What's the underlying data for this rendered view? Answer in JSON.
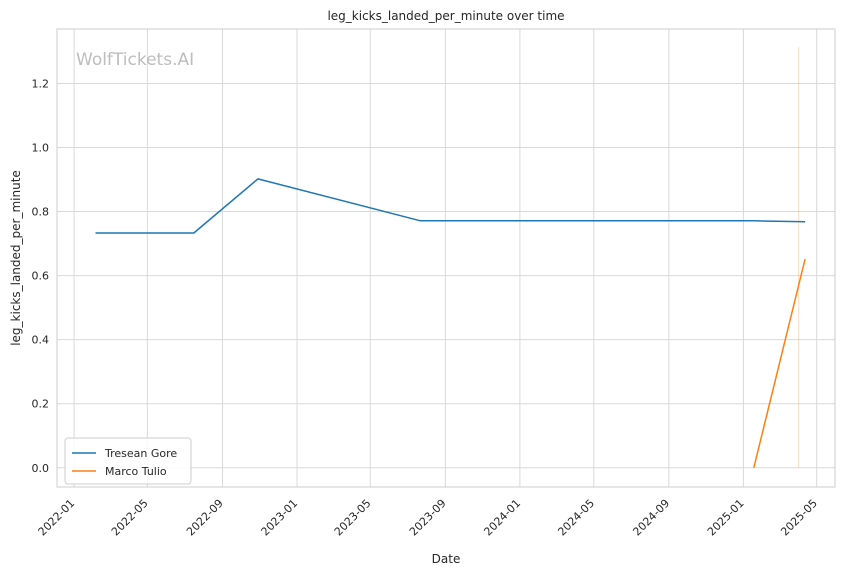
{
  "chart_data": {
    "type": "line",
    "title": "leg_kicks_landed_per_minute over time",
    "xlabel": "Date",
    "ylabel": "leg_kicks_landed_per_minute",
    "watermark": "WolfTickets.AI",
    "x_ticks": [
      "2022-01",
      "2022-05",
      "2022-09",
      "2023-01",
      "2023-05",
      "2023-09",
      "2024-01",
      "2024-05",
      "2024-09",
      "2025-01",
      "2025-05"
    ],
    "y_ticks": [
      "0.0",
      "0.2",
      "0.4",
      "0.6",
      "0.8",
      "1.0",
      "1.2"
    ],
    "ylim": [
      -0.06,
      1.37
    ],
    "xlim": [
      "2021-12-04",
      "2025-05-31"
    ],
    "grid": true,
    "legend_position": "lower-left",
    "series": [
      {
        "name": "Tresean Gore",
        "color": "#1f77b4",
        "points": [
          {
            "x": "2022-02-05",
            "y": 0.733
          },
          {
            "x": "2022-07-16",
            "y": 0.733
          },
          {
            "x": "2022-10-29",
            "y": 0.902
          },
          {
            "x": "2023-07-22",
            "y": 0.771
          },
          {
            "x": "2025-01-18",
            "y": 0.771
          },
          {
            "x": "2025-04-12",
            "y": 0.768
          }
        ]
      },
      {
        "name": "Marco Tulio",
        "color": "#ff7f0e",
        "points": [
          {
            "x": "2025-01-18",
            "y": 0.0
          },
          {
            "x": "2025-04-12",
            "y": 0.652
          }
        ]
      }
    ]
  }
}
